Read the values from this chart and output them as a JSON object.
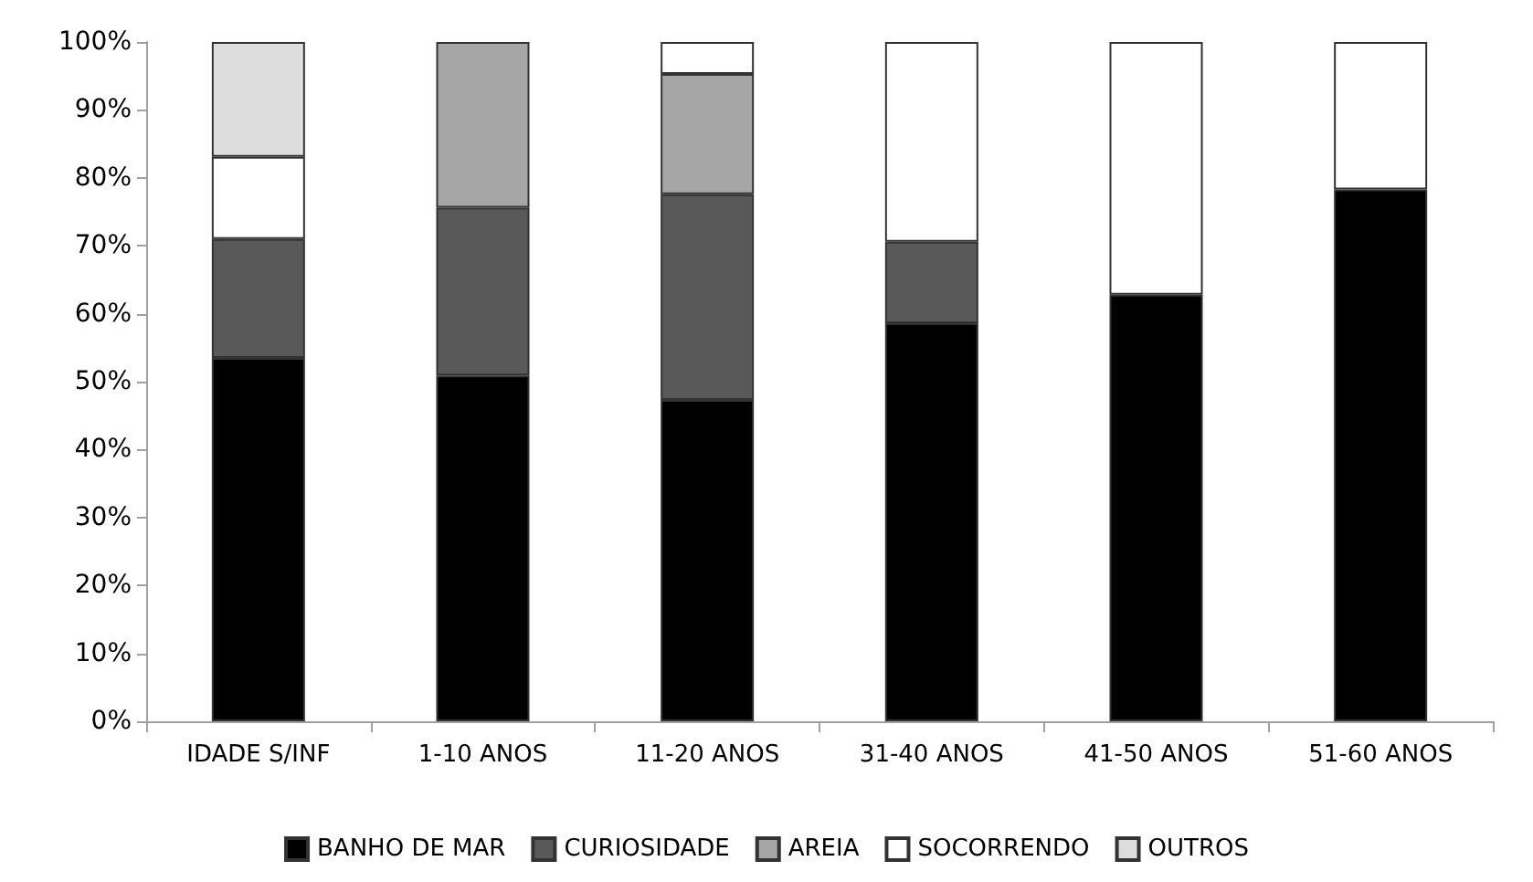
{
  "chart_data": {
    "type": "bar",
    "stacked": true,
    "categories": [
      "IDADE S/INF",
      "1-10 ANOS",
      "11-20 ANOS",
      "31-40 ANOS",
      "41-50 ANOS",
      "51-60 ANOS"
    ],
    "series": [
      {
        "name": "BANHO DE MAR",
        "color": "#000000",
        "values": [
          53.5,
          50.9,
          47.3,
          58.6,
          62.8,
          78.3
        ]
      },
      {
        "name": "CURIOSIDADE",
        "color": "#595959",
        "values": [
          17.5,
          24.7,
          30.3,
          12.0,
          null,
          null
        ]
      },
      {
        "name": "AREIA",
        "color": "#a6a6a6",
        "values": [
          null,
          24.4,
          17.7,
          null,
          null,
          null
        ]
      },
      {
        "name": "SOCORRENDO",
        "color": "#ffffff",
        "values": [
          12.1,
          null,
          4.7,
          29.4,
          37.2,
          21.7
        ]
      },
      {
        "name": "OUTROS",
        "color": "#dddddd",
        "values": [
          16.9,
          null,
          null,
          null,
          null,
          null
        ]
      }
    ],
    "ylim": [
      0,
      100
    ],
    "yticks": [
      {
        "value": 0,
        "label": "0%"
      },
      {
        "value": 10,
        "label": "10%"
      },
      {
        "value": 20,
        "label": "20%"
      },
      {
        "value": 30,
        "label": "30%"
      },
      {
        "value": 40,
        "label": "40%"
      },
      {
        "value": 50,
        "label": "50%"
      },
      {
        "value": 60,
        "label": "60%"
      },
      {
        "value": 70,
        "label": "70%"
      },
      {
        "value": 80,
        "label": "80%"
      },
      {
        "value": 90,
        "label": "90%"
      },
      {
        "value": 100,
        "label": "100%"
      }
    ],
    "grid": false,
    "legend": "bottom"
  }
}
